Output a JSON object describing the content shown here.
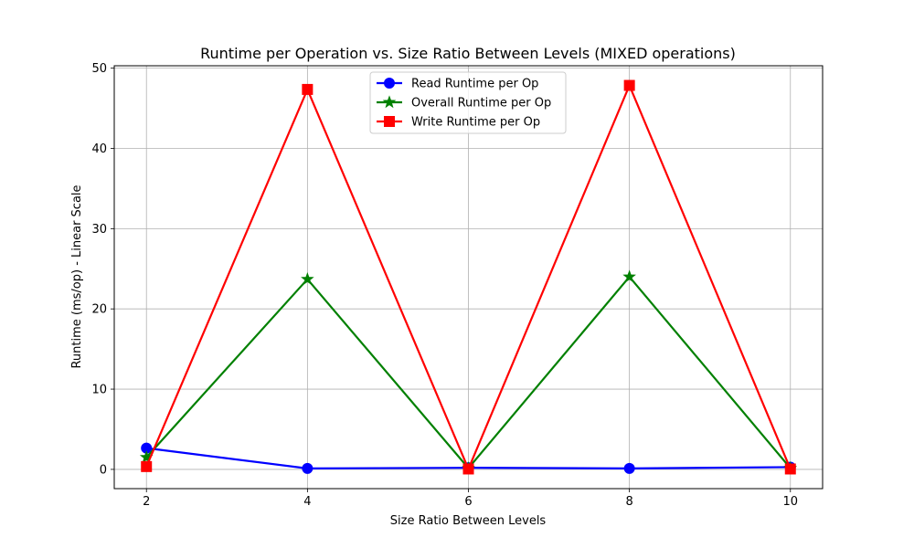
{
  "chart_data": {
    "type": "line",
    "title": "Runtime per Operation vs. Size Ratio Between Levels (MIXED operations)",
    "xlabel": "Size Ratio Between Levels",
    "ylabel": "Runtime (ms/op) - Linear Scale",
    "x": [
      2,
      4,
      6,
      8,
      10
    ],
    "xlim": [
      1.6,
      10.4
    ],
    "ylim": [
      -2.4,
      50.3
    ],
    "xticks": [
      2,
      4,
      6,
      8,
      10
    ],
    "yticks": [
      0,
      10,
      20,
      30,
      40,
      50
    ],
    "grid": true,
    "legend_position": "upper center",
    "series": [
      {
        "name": "Read Runtime per Op",
        "color": "#0000ff",
        "marker": "circle",
        "values": [
          2.65,
          0.12,
          0.2,
          0.12,
          0.28
        ]
      },
      {
        "name": "Overall Runtime per Op",
        "color": "#008000",
        "marker": "star",
        "values": [
          1.5,
          23.7,
          0.15,
          24.0,
          0.15
        ]
      },
      {
        "name": "Write Runtime per Op",
        "color": "#ff0000",
        "marker": "square",
        "values": [
          0.35,
          47.35,
          0.05,
          47.85,
          0.05
        ]
      }
    ]
  }
}
